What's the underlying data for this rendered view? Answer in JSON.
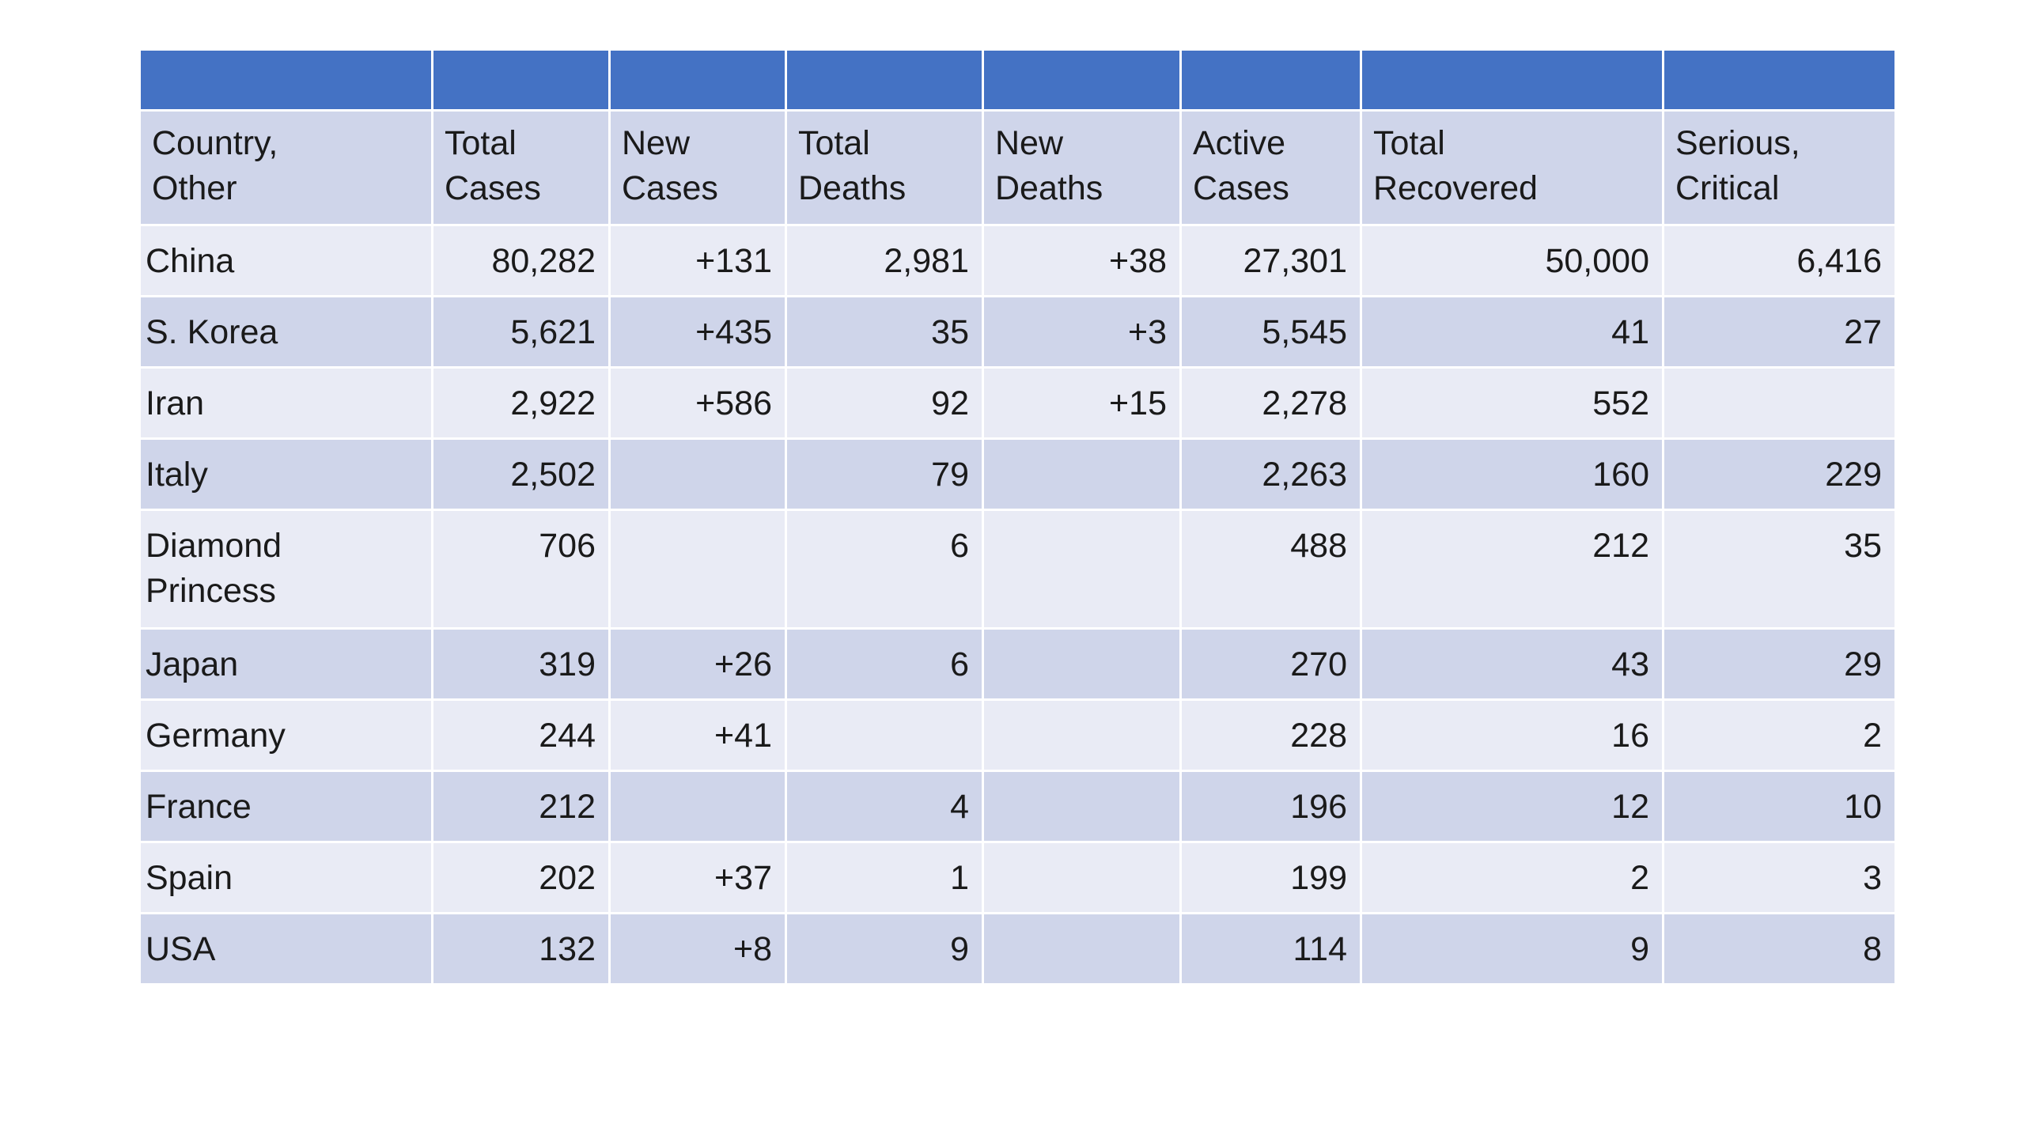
{
  "table": {
    "headers": [
      "Country,\nOther",
      "Total\nCases",
      "New\nCases",
      "Total\nDeaths",
      "New\nDeaths",
      "Active\nCases",
      "Total\nRecovered",
      "Serious,\nCritical"
    ],
    "rows": [
      [
        "China",
        "80,282",
        "+131",
        "2,981",
        "+38",
        "27,301",
        "50,000",
        "6,416"
      ],
      [
        "S. Korea",
        "5,621",
        "+435",
        "35",
        "+3",
        "5,545",
        "41",
        "27"
      ],
      [
        "Iran",
        "2,922",
        "+586",
        "92",
        "+15",
        "2,278",
        "552",
        ""
      ],
      [
        "Italy",
        "2,502",
        "",
        "79",
        "",
        "2,263",
        "160",
        "229"
      ],
      [
        "Diamond\nPrincess",
        "706",
        "",
        "6",
        "",
        "488",
        "212",
        "35"
      ],
      [
        "Japan",
        "319",
        "+26",
        "6",
        "",
        "270",
        "43",
        "29"
      ],
      [
        "Germany",
        "244",
        "+41",
        "",
        "",
        "228",
        "16",
        "2"
      ],
      [
        "France",
        "212",
        "",
        "4",
        "",
        "196",
        "12",
        "10"
      ],
      [
        "Spain",
        "202",
        "+37",
        "1",
        "",
        "199",
        "2",
        "3"
      ],
      [
        "USA",
        "132",
        "+8",
        "9",
        "",
        "114",
        "9",
        "8"
      ]
    ]
  },
  "colors": {
    "header_band": "#4472c4",
    "row_dark": "#cfd5ea",
    "row_light": "#e9ebf5"
  }
}
